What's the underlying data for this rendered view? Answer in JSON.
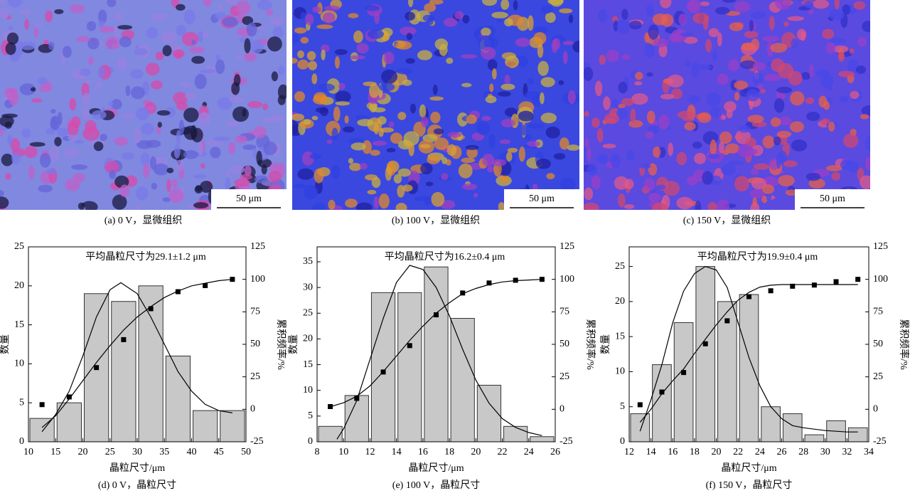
{
  "images": [
    {
      "caption": "(a) 0 V，显微组织",
      "scale_bar": "50 μm"
    },
    {
      "caption": "(b) 100 V，显微组织",
      "scale_bar": "50 μm"
    },
    {
      "caption": "(c) 150 V，显微组织",
      "scale_bar": "50 μm"
    }
  ],
  "chart_data": [
    {
      "type": "histogram",
      "title": "平均晶粒尺寸为29.1±1.2 μm",
      "xlabel": "晶粒尺寸/μm",
      "ylabel": "数量",
      "y2label": "累积频率/%",
      "caption": "(d) 0 V，晶粒尺寸",
      "bins": [
        10,
        15,
        20,
        25,
        30,
        35,
        40,
        45,
        50
      ],
      "counts": [
        3,
        5,
        19,
        18,
        20,
        11,
        4,
        4
      ],
      "bar_color": "#c8c8c8",
      "xlim": [
        10,
        50
      ],
      "xticks": [
        10,
        15,
        20,
        25,
        30,
        35,
        40,
        45,
        50
      ],
      "ylim": [
        0,
        25
      ],
      "yticks": [
        0,
        5,
        10,
        15,
        20,
        25
      ],
      "y2lim": [
        -25,
        125
      ],
      "y2ticks": [
        -25,
        0,
        25,
        50,
        75,
        100,
        125
      ],
      "series": [
        {
          "type": "scatter",
          "axis": "y2",
          "color": "#000000",
          "x": [
            12.5,
            17.5,
            22.5,
            27.5,
            32.5,
            37.5,
            42.5,
            47.5
          ],
          "values": [
            3.6,
            9.5,
            32.1,
            53.6,
            77.4,
            90.5,
            95.2,
            100
          ]
        },
        {
          "type": "line",
          "color": "#000000",
          "x": [
            12.5,
            15,
            17.5,
            20,
            22.5,
            25,
            27,
            30,
            32.5,
            35,
            37.5,
            40,
            42.5,
            45,
            47.5
          ],
          "values": [
            1.3,
            3.5,
            6.5,
            11,
            16,
            19.5,
            20.4,
            19,
            16,
            12.5,
            9,
            6.5,
            4.8,
            4,
            3.7
          ]
        },
        {
          "type": "line",
          "axis": "y2",
          "color": "#000000",
          "x": [
            12.5,
            15,
            17.5,
            20,
            22.5,
            25,
            27.5,
            30,
            32.5,
            35,
            37.5,
            40,
            42.5,
            45,
            47.5
          ],
          "values": [
            -14,
            -5,
            8,
            22,
            36,
            49,
            61,
            71,
            79,
            86,
            91,
            95,
            97,
            99,
            100
          ]
        }
      ]
    },
    {
      "type": "histogram",
      "title": "平均晶粒尺寸为16.2±0.4 μm",
      "xlabel": "晶粒尺寸/μm",
      "ylabel": "数量",
      "y2label": "累积频率/%",
      "caption": "(e) 100 V，晶粒尺寸",
      "bins": [
        8,
        10,
        12,
        14,
        16,
        18,
        20,
        22,
        24,
        26
      ],
      "counts": [
        3,
        9,
        29,
        29,
        34,
        24,
        11,
        3,
        1
      ],
      "bar_color": "#c8c8c8",
      "xlim": [
        8,
        26
      ],
      "xticks": [
        8,
        10,
        12,
        14,
        16,
        18,
        20,
        22,
        24,
        26
      ],
      "ylim": [
        0,
        37.9
      ],
      "yticks": [
        0,
        5,
        10,
        15,
        20,
        25,
        30,
        35
      ],
      "y2lim": [
        -25,
        125
      ],
      "y2ticks": [
        -25,
        0,
        25,
        50,
        75,
        100,
        125
      ],
      "series": [
        {
          "type": "scatter",
          "axis": "y2",
          "color": "#000000",
          "x": [
            9,
            11,
            13,
            15,
            17,
            19,
            21,
            23,
            25
          ],
          "values": [
            2.1,
            8.4,
            28.7,
            49,
            72.7,
            89.5,
            97.2,
            99.3,
            100
          ]
        },
        {
          "type": "line",
          "color": "#000000",
          "x": [
            9.5,
            10,
            11,
            12,
            13,
            14,
            15,
            16,
            17,
            18,
            19,
            20,
            21,
            22,
            23,
            24,
            25
          ],
          "values": [
            0.5,
            2.5,
            8,
            16,
            24,
            31,
            34.3,
            33.5,
            30,
            24.5,
            18,
            12,
            7.5,
            4.5,
            2.8,
            1.8,
            1.2
          ]
        },
        {
          "type": "line",
          "axis": "y2",
          "color": "#000000",
          "x": [
            9,
            10,
            11,
            12,
            13,
            14,
            15,
            16,
            17,
            18,
            19,
            20,
            21,
            22,
            23,
            24,
            25
          ],
          "values": [
            2,
            5,
            10,
            18,
            29,
            41,
            53,
            64,
            74,
            82,
            89,
            93,
            96,
            98,
            99,
            99.5,
            100
          ]
        }
      ]
    },
    {
      "type": "histogram",
      "title": "平均晶粒尺寸为19.9±0.4 μm",
      "xlabel": "晶粒尺寸/μm",
      "ylabel": "数量",
      "y2label": "累积频率/%",
      "caption": "(f) 150 V，晶粒尺寸",
      "bins": [
        12,
        14,
        16,
        18,
        20,
        22,
        24,
        26,
        28,
        30,
        32,
        34
      ],
      "counts": [
        4,
        11,
        17,
        25,
        20,
        21,
        5,
        4,
        1,
        3,
        2
      ],
      "bar_color": "#c8c8c8",
      "xlim": [
        12,
        34
      ],
      "xticks": [
        12,
        14,
        16,
        18,
        20,
        22,
        24,
        26,
        28,
        30,
        32,
        34
      ],
      "ylim": [
        0,
        27.8
      ],
      "yticks": [
        0,
        5,
        10,
        15,
        20,
        25
      ],
      "y2lim": [
        -25,
        125
      ],
      "y2ticks": [
        -25,
        0,
        25,
        50,
        75,
        100,
        125
      ],
      "series": [
        {
          "type": "scatter",
          "axis": "y2",
          "color": "#000000",
          "x": [
            13,
            15,
            17,
            19,
            21,
            23,
            25,
            27,
            29,
            31,
            33
          ],
          "values": [
            3.5,
            13.3,
            28.3,
            50.4,
            68.1,
            86.7,
            91.2,
            94.7,
            95.6,
            98.2,
            100
          ]
        },
        {
          "type": "line",
          "color": "#000000",
          "x": [
            13,
            14,
            15,
            16,
            17,
            18,
            19,
            20,
            21,
            22,
            23,
            24,
            25,
            26,
            27,
            28,
            30,
            32,
            33
          ],
          "values": [
            1.5,
            6,
            11,
            17,
            21.5,
            24,
            25,
            24.5,
            22,
            17,
            12,
            8,
            5,
            3.3,
            2.3,
            2,
            1.6,
            1.4,
            1.4
          ]
        },
        {
          "type": "line",
          "axis": "y2",
          "color": "#000000",
          "x": [
            13,
            14,
            15,
            16,
            17,
            18,
            19,
            20,
            21,
            22,
            23,
            24,
            25,
            26,
            28,
            30,
            33
          ],
          "values": [
            -10,
            0,
            12,
            22,
            31,
            43,
            54,
            65,
            75,
            84,
            90,
            94,
            95.5,
            96,
            96,
            96,
            96
          ]
        }
      ]
    }
  ]
}
